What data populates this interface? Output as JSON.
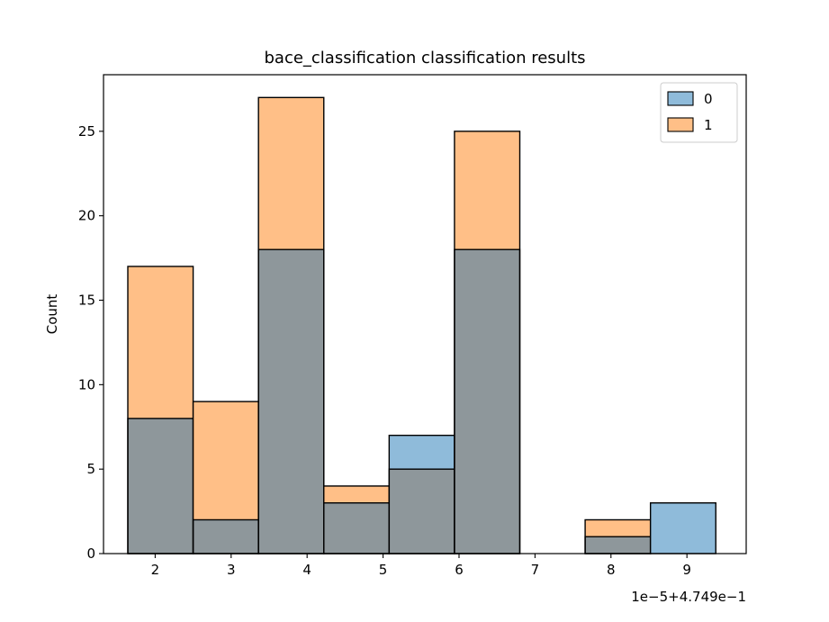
{
  "chart_data": {
    "type": "histogram",
    "title": "bace_classification classification results",
    "xlabel": "",
    "ylabel": "Count",
    "offset_label": "1e−5+4.749e−1",
    "x_ticks": [
      2,
      3,
      4,
      5,
      6,
      7,
      8,
      9
    ],
    "y_ticks": [
      0,
      5,
      10,
      15,
      20,
      25
    ],
    "xlim": [
      1.32,
      9.78
    ],
    "ylim": [
      0,
      28.35
    ],
    "bin_edges": [
      1.64,
      2.5,
      3.36,
      4.22,
      5.08,
      5.94,
      6.8,
      7.66,
      8.52,
      9.38
    ],
    "series": [
      {
        "name": "0",
        "color": "#1f77b4",
        "values": [
          8,
          2,
          18,
          3,
          7,
          18,
          0,
          1,
          3
        ]
      },
      {
        "name": "1",
        "color": "#ff7f0e",
        "values": [
          17,
          9,
          27,
          4,
          5,
          25,
          0,
          2,
          0
        ]
      }
    ],
    "legend_position": "top-right",
    "grid": false
  }
}
